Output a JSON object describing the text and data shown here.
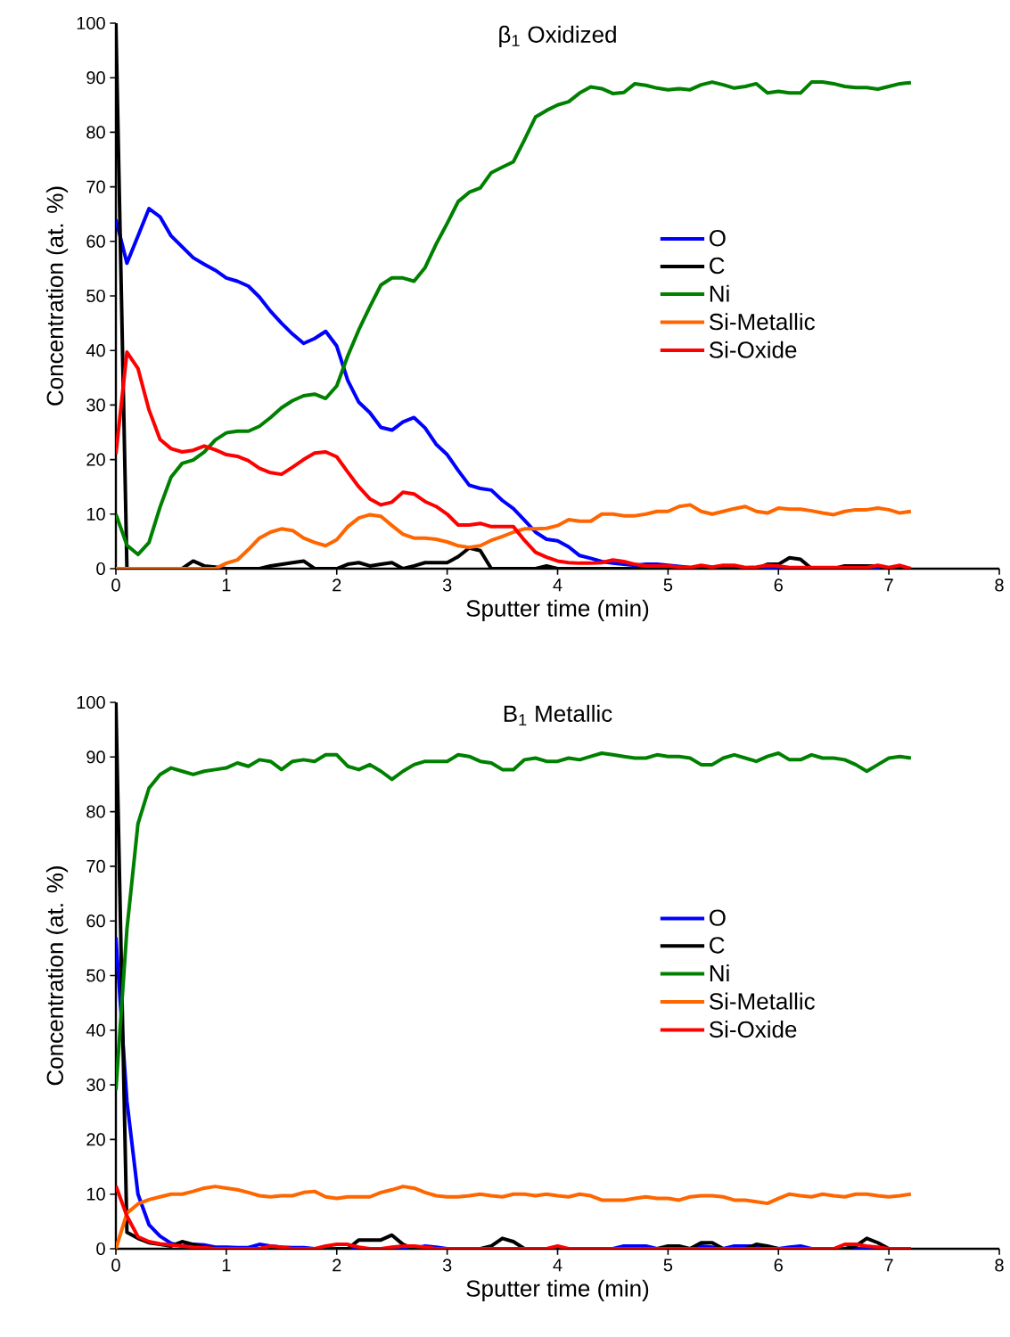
{
  "chart_data": [
    {
      "type": "line",
      "title": "β$_{1}$ Oxidized",
      "xlabel": "Sputter time (min)",
      "ylabel": "Concentration (at. %)",
      "x": [
        0,
        0.1,
        0.2,
        0.3,
        0.4,
        0.5,
        0.6,
        0.7,
        0.8,
        0.9,
        1,
        1.1,
        1.2,
        1.3,
        1.4,
        1.5,
        1.6,
        1.7,
        1.8,
        1.9,
        2,
        2.1,
        2.2,
        2.3,
        2.4,
        2.5,
        2.6,
        2.7,
        2.8,
        2.9,
        3,
        3.1,
        3.2,
        3.3,
        3.4,
        3.5,
        3.6,
        3.7,
        3.8,
        3.9,
        4,
        4.1,
        4.2,
        4.3,
        4.4,
        4.5,
        4.6,
        4.7,
        4.8,
        4.9,
        5,
        5.1,
        5.2,
        5.3,
        5.4,
        5.5,
        5.6,
        5.7,
        5.8,
        5.9,
        6,
        6.1,
        6.2,
        6.3,
        6.4,
        6.5,
        6.6,
        6.7,
        6.8,
        6.9,
        7,
        7.1,
        7.2
      ],
      "xlim": [
        0,
        8
      ],
      "xticks": [
        0,
        1,
        2,
        3,
        4,
        5,
        6,
        7,
        8
      ],
      "ylim": [
        0,
        100
      ],
      "yticks": [
        0,
        10,
        20,
        30,
        40,
        50,
        60,
        70,
        80,
        90,
        100
      ],
      "legend": "right",
      "marker": "none",
      "line_style": "solid",
      "series": [
        {
          "name": "O",
          "color": "#0000ff",
          "values": [
            64,
            56,
            61,
            66,
            64.5,
            61,
            59,
            57,
            55.8,
            54.7,
            53.3,
            52.7,
            51.8,
            49.8,
            47.2,
            45,
            43,
            41.3,
            42.2,
            43.5,
            40.8,
            34.5,
            30.5,
            28.6,
            25.9,
            25.4,
            26.9,
            27.7,
            25.8,
            22.8,
            20.9,
            18,
            15.3,
            14.7,
            14.4,
            12.5,
            11,
            8.9,
            6.7,
            5.4,
            5.1,
            4,
            2.4,
            1.9,
            1.3,
            1,
            0.8,
            0.6,
            0.8,
            0.8,
            0.6,
            0.4,
            0.2,
            0,
            0,
            0,
            0,
            0,
            0,
            0,
            0,
            0,
            0,
            0,
            0,
            0,
            0,
            0,
            0,
            0,
            0,
            null,
            null
          ]
        },
        {
          "name": "C",
          "color": "#000000",
          "values": [
            100,
            0,
            0,
            0,
            0,
            0,
            0,
            1.4,
            0.5,
            0.3,
            0,
            0,
            0,
            0,
            0.5,
            0.8,
            1.1,
            1.4,
            0,
            0,
            0,
            0.8,
            1.1,
            0.5,
            0.8,
            1.1,
            0,
            0.5,
            1.1,
            1.1,
            1.1,
            2.2,
            3.8,
            3.3,
            0,
            0,
            0,
            0,
            0,
            0.5,
            0,
            0,
            0,
            0,
            0,
            0,
            0,
            0,
            0,
            0,
            0,
            0,
            0,
            0,
            0,
            0,
            0,
            0,
            0,
            0.8,
            0.8,
            2,
            1.7,
            0,
            0,
            0,
            0.5,
            0.5,
            0.5,
            0.5,
            0,
            0,
            0
          ]
        },
        {
          "name": "Ni",
          "color": "#008000",
          "values": [
            10,
            4.3,
            2.6,
            4.8,
            11.3,
            16.8,
            19.3,
            19.9,
            21.4,
            23.6,
            24.9,
            25.2,
            25.2,
            26.1,
            27.7,
            29.5,
            30.8,
            31.7,
            32,
            31.2,
            33.5,
            39,
            43.8,
            48,
            52,
            53.3,
            53.3,
            52.7,
            55.2,
            59.5,
            63.3,
            67.3,
            69,
            69.8,
            72.6,
            73.6,
            74.6,
            78.6,
            82.8,
            84,
            85,
            85.6,
            87.2,
            88.3,
            88,
            87.1,
            87.3,
            88.9,
            88.6,
            88.1,
            87.8,
            88,
            87.8,
            88.7,
            89.2,
            88.7,
            88.1,
            88.4,
            88.9,
            87.2,
            87.5,
            87.2,
            87.2,
            89.2,
            89.2,
            88.9,
            88.4,
            88.2,
            88.2,
            87.9,
            88.4,
            88.9,
            89.1
          ]
        },
        {
          "name": "Si-Metallic",
          "color": "#ff6600",
          "values": [
            0,
            0,
            0,
            0,
            0,
            0,
            0,
            0,
            0,
            0,
            1,
            1.6,
            3.5,
            5.6,
            6.7,
            7.3,
            7,
            5.6,
            4.8,
            4.2,
            5.3,
            7.7,
            9.3,
            9.9,
            9.6,
            7.9,
            6.3,
            5.6,
            5.6,
            5.4,
            4.9,
            4.2,
            3.9,
            4.2,
            5.2,
            5.9,
            6.7,
            7.3,
            7.3,
            7.4,
            7.9,
            9,
            8.7,
            8.7,
            10,
            10,
            9.7,
            9.7,
            10,
            10.5,
            10.5,
            11.4,
            11.7,
            10.5,
            10,
            10.5,
            11,
            11.4,
            10.5,
            10.2,
            11.1,
            10.9,
            10.9,
            10.6,
            10.2,
            9.9,
            10.5,
            10.8,
            10.8,
            11.1,
            10.8,
            10.2,
            10.5
          ]
        },
        {
          "name": "Si-Oxide",
          "color": "#ff0000",
          "values": [
            21,
            39.7,
            36.7,
            29.1,
            23.7,
            22,
            21.4,
            21.7,
            22.5,
            21.8,
            20.9,
            20.6,
            19.8,
            18.4,
            17.6,
            17.3,
            18.6,
            20,
            21.2,
            21.4,
            20.5,
            17.7,
            15,
            12.8,
            11.7,
            12.2,
            14,
            13.7,
            12.3,
            11.4,
            10,
            8,
            8,
            8.3,
            7.7,
            7.7,
            7.7,
            5.2,
            3,
            2.1,
            1.4,
            1.1,
            1,
            1,
            1.1,
            1.6,
            1.3,
            0.8,
            0.5,
            0.5,
            0.5,
            0.3,
            0.2,
            0.6,
            0.3,
            0.6,
            0.6,
            0.2,
            0.3,
            0.6,
            0.5,
            0.2,
            0.2,
            0.2,
            0.2,
            0.2,
            0.2,
            0.2,
            0.2,
            0.6,
            0.2,
            0.6,
            0
          ]
        }
      ]
    },
    {
      "type": "line",
      "title": "B$_{1}$ Metallic",
      "xlabel": "Sputter time (min)",
      "ylabel": "Concentration (at. %)",
      "x": [
        0,
        0.1,
        0.2,
        0.3,
        0.4,
        0.5,
        0.6,
        0.7,
        0.8,
        0.9,
        1,
        1.1,
        1.2,
        1.3,
        1.4,
        1.5,
        1.6,
        1.7,
        1.8,
        1.9,
        2,
        2.1,
        2.2,
        2.3,
        2.4,
        2.5,
        2.6,
        2.7,
        2.8,
        2.9,
        3,
        3.1,
        3.2,
        3.3,
        3.4,
        3.5,
        3.6,
        3.7,
        3.8,
        3.9,
        4,
        4.1,
        4.2,
        4.3,
        4.4,
        4.5,
        4.6,
        4.7,
        4.8,
        4.9,
        5,
        5.1,
        5.2,
        5.3,
        5.4,
        5.5,
        5.6,
        5.7,
        5.8,
        5.9,
        6,
        6.1,
        6.2,
        6.3,
        6.4,
        6.5,
        6.6,
        6.7,
        6.8,
        6.9,
        7,
        7.1,
        7.2
      ],
      "xlim": [
        0,
        8
      ],
      "xticks": [
        0,
        1,
        2,
        3,
        4,
        5,
        6,
        7,
        8
      ],
      "ylim": [
        0,
        100
      ],
      "yticks": [
        0,
        10,
        20,
        30,
        40,
        50,
        60,
        70,
        80,
        90,
        100
      ],
      "legend": "right",
      "marker": "none",
      "line_style": "solid",
      "series": [
        {
          "name": "O",
          "color": "#0000ff",
          "values": [
            57,
            27,
            10,
            4.4,
            2.3,
            1,
            0.5,
            0.8,
            0.7,
            0.3,
            0.3,
            0.2,
            0.2,
            0.8,
            0.5,
            0.3,
            0.2,
            0.2,
            0,
            0,
            0,
            0,
            0,
            0,
            0,
            0,
            0,
            0,
            0.5,
            0.3,
            0,
            0,
            0,
            0,
            0,
            0,
            0,
            0,
            0,
            0,
            0,
            0,
            0,
            0,
            0,
            0,
            0.5,
            0.5,
            0.5,
            0,
            0,
            0,
            0,
            0.5,
            0.3,
            0,
            0.5,
            0.5,
            0.5,
            0.3,
            0,
            0.3,
            0.5,
            0,
            0,
            0,
            0,
            0,
            0,
            0,
            null,
            null,
            null
          ]
        },
        {
          "name": "C",
          "color": "#000000",
          "values": [
            100,
            3,
            1.9,
            1.1,
            0.8,
            0.5,
            1.3,
            0.8,
            0.3,
            0,
            0,
            0,
            0,
            0,
            0,
            0,
            0,
            0,
            0,
            0,
            0,
            0,
            1.6,
            1.6,
            1.6,
            2.5,
            0.8,
            0,
            0,
            0,
            0,
            0,
            0,
            0,
            0.5,
            1.9,
            1.3,
            0,
            0,
            0,
            0,
            0,
            0,
            0,
            0,
            0,
            0,
            0,
            0,
            0,
            0.5,
            0.5,
            0,
            1.1,
            1.1,
            0,
            0,
            0,
            0.8,
            0.5,
            0,
            0,
            0,
            0,
            0,
            0,
            0,
            0.5,
            1.9,
            1.1,
            0,
            0,
            0
          ]
        },
        {
          "name": "Ni",
          "color": "#008000",
          "values": [
            29,
            58.5,
            77.8,
            84.3,
            86.8,
            88,
            87.4,
            86.8,
            87.4,
            87.7,
            88,
            88.9,
            88.3,
            89.5,
            89.2,
            87.7,
            89.2,
            89.5,
            89.2,
            90.4,
            90.4,
            88.3,
            87.7,
            88.6,
            87.4,
            85.9,
            87.4,
            88.6,
            89.2,
            89.2,
            89.2,
            90.4,
            90.1,
            89.2,
            88.9,
            87.7,
            87.7,
            89.5,
            89.8,
            89.2,
            89.2,
            89.8,
            89.5,
            90.1,
            90.7,
            90.4,
            90.1,
            89.8,
            89.8,
            90.4,
            90.1,
            90.1,
            89.8,
            88.6,
            88.6,
            89.8,
            90.4,
            89.8,
            89.2,
            90.1,
            90.7,
            89.5,
            89.5,
            90.4,
            89.8,
            89.8,
            89.5,
            88.6,
            87.4,
            88.6,
            89.8,
            90.1,
            89.8
          ]
        },
        {
          "name": "Si-Metallic",
          "color": "#ff6600",
          "values": [
            0,
            6.5,
            8.2,
            9,
            9.5,
            10,
            10,
            10.5,
            11.1,
            11.4,
            11.1,
            10.8,
            10.3,
            9.7,
            9.5,
            9.7,
            9.7,
            10.3,
            10.5,
            9.5,
            9.2,
            9.5,
            9.5,
            9.5,
            10.3,
            10.8,
            11.4,
            11.1,
            10.3,
            9.7,
            9.5,
            9.5,
            9.7,
            10,
            9.7,
            9.5,
            10,
            10,
            9.7,
            10,
            9.7,
            9.5,
            10,
            9.7,
            8.9,
            8.9,
            8.9,
            9.2,
            9.5,
            9.2,
            9.2,
            8.9,
            9.5,
            9.7,
            9.7,
            9.5,
            8.9,
            8.9,
            8.6,
            8.3,
            9.2,
            10,
            9.7,
            9.5,
            10,
            9.7,
            9.5,
            10,
            10,
            9.7,
            9.5,
            9.7,
            10
          ]
        },
        {
          "name": "Si-Oxide",
          "color": "#ff0000",
          "values": [
            11.5,
            6,
            2.2,
            1.3,
            0.9,
            0.7,
            0.5,
            0.3,
            0.2,
            0,
            0,
            0,
            0,
            0,
            0.5,
            0.3,
            0,
            0,
            0,
            0.5,
            0.8,
            0.8,
            0.3,
            0,
            0,
            0.3,
            0.5,
            0.5,
            0.3,
            0,
            0,
            0,
            0,
            0,
            0,
            0,
            0,
            0,
            0,
            0,
            0.5,
            0,
            0,
            0,
            0,
            0,
            0,
            0,
            0,
            0,
            0,
            0,
            0,
            0,
            0,
            0,
            0,
            0,
            0,
            0,
            0,
            0,
            0,
            0,
            0,
            0,
            0.8,
            0.8,
            0.5,
            0.3,
            0,
            0,
            0
          ]
        }
      ]
    }
  ]
}
